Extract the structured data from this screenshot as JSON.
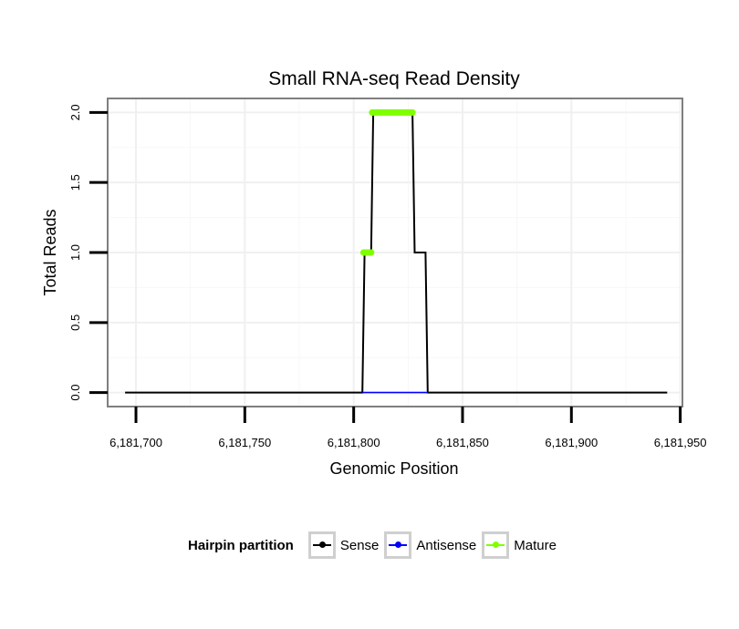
{
  "chart_data": {
    "type": "line",
    "title": "Small RNA-seq Read Density",
    "xlabel": "Genomic Position",
    "ylabel": "Total Reads",
    "xlim": [
      6181687,
      6181951
    ],
    "ylim": [
      -0.1,
      2.1
    ],
    "x_ticks": [
      6181700,
      6181750,
      6181800,
      6181850,
      6181900,
      6181950
    ],
    "x_tick_labels": [
      "6,181,700",
      "6,181,750",
      "6,181,800",
      "6,181,850",
      "6,181,900",
      "6,181,950"
    ],
    "y_ticks": [
      0.0,
      0.5,
      1.0,
      1.5,
      2.0
    ],
    "y_tick_labels": [
      "0.0",
      "0.5",
      "1.0",
      "1.5",
      "2.0"
    ],
    "grid": true,
    "legend_position": "bottom",
    "series": [
      {
        "name": "Sense",
        "color": "#000000",
        "points": [
          [
            6181695,
            0
          ],
          [
            6181804,
            0
          ],
          [
            6181805,
            1
          ],
          [
            6181808,
            1
          ],
          [
            6181809,
            2
          ],
          [
            6181827,
            2
          ],
          [
            6181828,
            1
          ],
          [
            6181833,
            1
          ],
          [
            6181834,
            0
          ],
          [
            6181944,
            0
          ]
        ]
      },
      {
        "name": "Antisense",
        "color": "#0000ff",
        "points": [
          [
            6181804,
            0
          ],
          [
            6181834,
            0
          ]
        ]
      },
      {
        "name": "Mature",
        "color": "#7fff00",
        "segments": [
          [
            [
              6181804.5,
              1
            ],
            [
              6181808,
              1
            ]
          ],
          [
            [
              6181808.5,
              2
            ],
            [
              6181827,
              2
            ]
          ]
        ]
      }
    ]
  },
  "legend": {
    "title": "Hairpin partition",
    "items": [
      {
        "label": "Sense",
        "color": "#000000"
      },
      {
        "label": "Antisense",
        "color": "#0000ff"
      },
      {
        "label": "Mature",
        "color": "#7fff00"
      }
    ]
  }
}
